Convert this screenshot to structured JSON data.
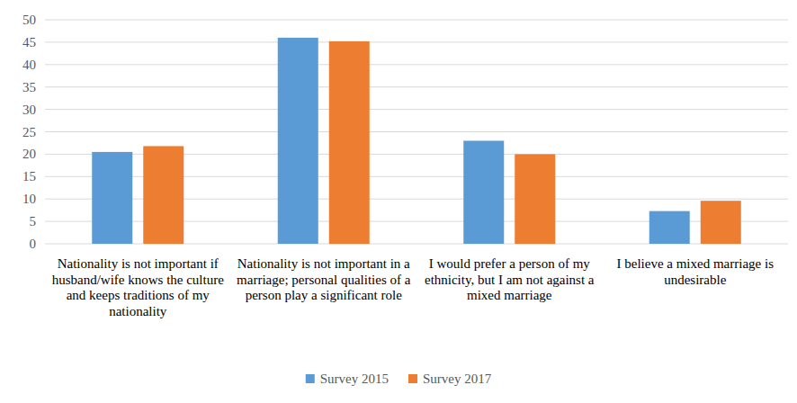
{
  "chart_data": {
    "type": "bar",
    "categories": [
      "Nationality is not important if husband/wife knows the culture and keeps traditions of my nationality",
      "Nationality is not important in a marriage; personal qualities of a person play a significant role",
      "I would prefer a person of my ethnicity, but I am not against a mixed marriage",
      "I believe a mixed marriage is undesirable"
    ],
    "series": [
      {
        "name": "Survey 2015",
        "color": "#5b9bd5",
        "values": [
          20.5,
          46,
          23,
          7.3
        ]
      },
      {
        "name": "Survey 2017",
        "color": "#ed7d31",
        "values": [
          21.8,
          45.2,
          20,
          9.6
        ]
      }
    ],
    "ylim": [
      0,
      50
    ],
    "yticks": [
      0,
      5,
      10,
      15,
      20,
      25,
      30,
      35,
      40,
      45,
      50
    ],
    "grid": true,
    "legend": "bottom"
  }
}
